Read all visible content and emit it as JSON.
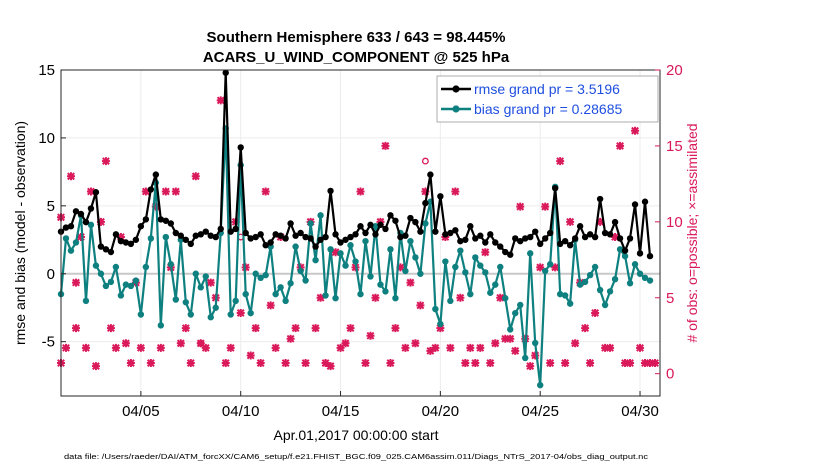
{
  "colors": {
    "rmse": "#000000",
    "bias": "#0f8080",
    "obs": "#d9195a",
    "legend_text": "#1f4fe0",
    "zero_line": "#c8c8c8"
  },
  "chart_data": {
    "type": "line",
    "title": "Southern Hemisphere 633 / 643 = 98.445%",
    "subtitle": "ACARS_U_WIND_COMPONENT @ 525 hPa",
    "xlabel": "Apr.01,2017 00:00:00 start",
    "ylabel": "rmse and bias (model - observation)",
    "y2label": "# of obs: o=possible; ×=assimilated",
    "footnote": "data file: /Users/raeder/DAI/ATM_forcXX/CAM6_setup/f.e21.FHIST_BGC.f09_025.CAM6assim.011/Diags_NTrS_2017-04/obs_diag_output.nc",
    "xlim": [
      1,
      31
    ],
    "ylim": [
      -9,
      15
    ],
    "y2lim": [
      -1.47,
      20
    ],
    "xticks": [
      {
        "v": 5,
        "label": "04/05"
      },
      {
        "v": 10,
        "label": "04/10"
      },
      {
        "v": 15,
        "label": "04/15"
      },
      {
        "v": 20,
        "label": "04/20"
      },
      {
        "v": 25,
        "label": "04/25"
      },
      {
        "v": 30,
        "label": "04/30"
      }
    ],
    "yticks": [
      {
        "v": 15,
        "label": "15"
      },
      {
        "v": 10,
        "label": "10"
      },
      {
        "v": 5,
        "label": "5"
      },
      {
        "v": 0,
        "label": "0"
      },
      {
        "v": -5,
        "label": "-5"
      }
    ],
    "y2ticks": [
      {
        "v": 20,
        "label": "20"
      },
      {
        "v": 15,
        "label": "15"
      },
      {
        "v": 10,
        "label": "10"
      },
      {
        "v": 5,
        "label": "5"
      },
      {
        "v": 0,
        "label": "0"
      }
    ],
    "legend": [
      {
        "name": "rmse grand pr = 3.5196",
        "key": "rmse"
      },
      {
        "name": "bias grand pr = 0.28685",
        "key": "bias"
      }
    ],
    "rmse": [
      [
        1.0,
        3.1
      ],
      [
        1.25,
        3.4
      ],
      [
        1.5,
        3.5
      ],
      [
        1.75,
        4.6
      ],
      [
        2.0,
        4.4
      ],
      [
        2.25,
        3.8
      ],
      [
        2.5,
        4.8
      ],
      [
        2.75,
        6.0
      ],
      [
        3.0,
        2.0
      ],
      [
        3.25,
        1.8
      ],
      [
        3.5,
        1.6
      ],
      [
        3.75,
        2.9
      ],
      [
        4.0,
        2.4
      ],
      [
        4.25,
        2.3
      ],
      [
        4.5,
        2.2
      ],
      [
        4.75,
        2.5
      ],
      [
        5.0,
        3.5
      ],
      [
        5.25,
        4.0
      ],
      [
        5.5,
        6.2
      ],
      [
        5.75,
        7.3
      ],
      [
        6.0,
        4.0
      ],
      [
        6.25,
        3.9
      ],
      [
        6.5,
        3.7
      ],
      [
        6.75,
        3.0
      ],
      [
        7.0,
        2.8
      ],
      [
        7.25,
        2.5
      ],
      [
        7.5,
        2.2
      ],
      [
        7.75,
        2.8
      ],
      [
        8.0,
        2.9
      ],
      [
        8.25,
        3.1
      ],
      [
        8.5,
        2.8
      ],
      [
        8.75,
        2.7
      ],
      [
        9.0,
        3.3
      ],
      [
        9.25,
        14.8
      ],
      [
        9.5,
        3.1
      ],
      [
        9.75,
        3.3
      ],
      [
        10.0,
        9.3
      ],
      [
        10.25,
        3.0
      ],
      [
        10.5,
        2.6
      ],
      [
        10.75,
        2.7
      ],
      [
        11.0,
        2.9
      ],
      [
        11.25,
        2.1
      ],
      [
        11.5,
        2.3
      ],
      [
        11.75,
        2.9
      ],
      [
        12.0,
        2.8
      ],
      [
        12.25,
        2.6
      ],
      [
        12.5,
        3.7
      ],
      [
        12.75,
        2.8
      ],
      [
        13.0,
        3.0
      ],
      [
        13.25,
        2.7
      ],
      [
        13.5,
        2.6
      ],
      [
        13.75,
        2.0
      ],
      [
        14.0,
        2.5
      ],
      [
        14.25,
        2.7
      ],
      [
        14.5,
        6.1
      ],
      [
        14.75,
        2.9
      ],
      [
        15.0,
        2.3
      ],
      [
        15.25,
        2.5
      ],
      [
        15.5,
        2.7
      ],
      [
        15.75,
        2.9
      ],
      [
        16.0,
        3.5
      ],
      [
        16.25,
        3.0
      ],
      [
        16.5,
        3.6
      ],
      [
        16.75,
        2.9
      ],
      [
        17.0,
        3.6
      ],
      [
        17.25,
        3.3
      ],
      [
        17.5,
        4.3
      ],
      [
        17.75,
        3.9
      ],
      [
        18.0,
        2.7
      ],
      [
        18.25,
        2.8
      ],
      [
        18.5,
        4.1
      ],
      [
        18.75,
        3.8
      ],
      [
        19.0,
        3.1
      ],
      [
        19.25,
        5.2
      ],
      [
        19.5,
        7.3
      ],
      [
        19.75,
        3.1
      ],
      [
        20.0,
        5.7
      ],
      [
        20.25,
        2.9
      ],
      [
        20.5,
        3.0
      ],
      [
        20.75,
        3.2
      ],
      [
        21.0,
        2.4
      ],
      [
        21.25,
        2.5
      ],
      [
        21.5,
        3.5
      ],
      [
        21.75,
        2.6
      ],
      [
        22.0,
        2.8
      ],
      [
        22.25,
        2.3
      ],
      [
        22.5,
        2.9
      ],
      [
        22.75,
        2.3
      ],
      [
        23.0,
        2.0
      ],
      [
        23.25,
        1.6
      ],
      [
        23.5,
        1.4
      ],
      [
        23.75,
        2.6
      ],
      [
        24.0,
        2.4
      ],
      [
        24.25,
        2.6
      ],
      [
        24.5,
        2.7
      ],
      [
        24.75,
        3.1
      ],
      [
        25.0,
        2.2
      ],
      [
        25.25,
        2.6
      ],
      [
        25.5,
        3.0
      ],
      [
        25.75,
        6.3
      ],
      [
        26.0,
        2.2
      ],
      [
        26.25,
        2.4
      ],
      [
        26.5,
        2.1
      ],
      [
        26.75,
        2.6
      ],
      [
        27.0,
        3.5
      ],
      [
        27.25,
        2.7
      ],
      [
        27.5,
        2.9
      ],
      [
        27.75,
        2.7
      ],
      [
        28.0,
        5.5
      ],
      [
        28.25,
        3.0
      ],
      [
        28.5,
        2.9
      ],
      [
        28.75,
        3.8
      ],
      [
        29.0,
        2.6
      ],
      [
        29.25,
        1.7
      ],
      [
        29.5,
        2.6
      ],
      [
        29.75,
        5.1
      ],
      [
        30.0,
        1.5
      ],
      [
        30.25,
        5.3
      ],
      [
        30.5,
        1.3
      ]
    ],
    "bias": [
      [
        1.0,
        -1.5
      ],
      [
        1.25,
        2.6
      ],
      [
        1.5,
        1.7
      ],
      [
        1.75,
        2.3
      ],
      [
        2.0,
        4.3
      ],
      [
        2.25,
        -2.0
      ],
      [
        2.5,
        3.6
      ],
      [
        2.75,
        0.6
      ],
      [
        3.0,
        0.0
      ],
      [
        3.25,
        -0.9
      ],
      [
        3.5,
        -0.6
      ],
      [
        3.75,
        0.5
      ],
      [
        4.0,
        -1.6
      ],
      [
        4.25,
        -0.8
      ],
      [
        4.5,
        -0.9
      ],
      [
        4.75,
        -0.5
      ],
      [
        5.0,
        -3.0
      ],
      [
        5.25,
        0.5
      ],
      [
        5.5,
        2.6
      ],
      [
        5.75,
        6.7
      ],
      [
        6.0,
        -3.8
      ],
      [
        6.25,
        2.7
      ],
      [
        6.5,
        0.7
      ],
      [
        6.75,
        -1.9
      ],
      [
        7.0,
        2.5
      ],
      [
        7.25,
        -2.1
      ],
      [
        7.5,
        -3.0
      ],
      [
        7.75,
        0.0
      ],
      [
        8.0,
        -1.0
      ],
      [
        8.25,
        -0.2
      ],
      [
        8.5,
        -3.2
      ],
      [
        8.75,
        -2.5
      ],
      [
        9.0,
        3.0
      ],
      [
        9.25,
        10.7
      ],
      [
        9.5,
        -3.0
      ],
      [
        9.75,
        -2.0
      ],
      [
        10.0,
        8.0
      ],
      [
        10.25,
        -1.5
      ],
      [
        10.5,
        -2.9
      ],
      [
        10.75,
        0.0
      ],
      [
        11.0,
        -0.3
      ],
      [
        11.25,
        -0.1
      ],
      [
        11.5,
        2.0
      ],
      [
        11.75,
        -1.5
      ],
      [
        12.0,
        -1.0
      ],
      [
        12.25,
        -2.0
      ],
      [
        12.5,
        -0.7
      ],
      [
        12.75,
        2.0
      ],
      [
        13.0,
        0.2
      ],
      [
        13.25,
        -0.5
      ],
      [
        13.5,
        3.7
      ],
      [
        13.75,
        1.0
      ],
      [
        14.0,
        4.3
      ],
      [
        14.25,
        -1.6
      ],
      [
        14.5,
        1.8
      ],
      [
        14.75,
        -1.8
      ],
      [
        15.0,
        1.5
      ],
      [
        15.25,
        0.6
      ],
      [
        15.5,
        2.1
      ],
      [
        15.75,
        0.9
      ],
      [
        16.0,
        -1.5
      ],
      [
        16.25,
        2.4
      ],
      [
        16.5,
        -0.2
      ],
      [
        16.75,
        3.5
      ],
      [
        17.0,
        -0.8
      ],
      [
        17.25,
        -1.3
      ],
      [
        17.5,
        1.8
      ],
      [
        17.75,
        -1.8
      ],
      [
        18.0,
        3.0
      ],
      [
        18.25,
        0.2
      ],
      [
        18.5,
        2.4
      ],
      [
        18.75,
        1.2
      ],
      [
        19.0,
        0.0
      ],
      [
        19.25,
        3.7
      ],
      [
        19.5,
        5.3
      ],
      [
        19.75,
        -2.6
      ],
      [
        20.0,
        -3.7
      ],
      [
        20.25,
        0.9
      ],
      [
        20.5,
        -2.0
      ],
      [
        20.75,
        0.5
      ],
      [
        21.0,
        1.7
      ],
      [
        21.25,
        0.1
      ],
      [
        21.5,
        -1.5
      ],
      [
        21.75,
        1.2
      ],
      [
        22.0,
        0.6
      ],
      [
        22.25,
        0.1
      ],
      [
        22.5,
        -1.4
      ],
      [
        22.75,
        -0.8
      ],
      [
        23.0,
        0.5
      ],
      [
        23.25,
        -1.8
      ],
      [
        23.5,
        -4.1
      ],
      [
        23.75,
        -2.9
      ],
      [
        24.0,
        -2.3
      ],
      [
        24.25,
        -6.2
      ],
      [
        24.5,
        1.5
      ],
      [
        24.75,
        -5.1
      ],
      [
        25.0,
        -8.2
      ],
      [
        25.25,
        0.2
      ],
      [
        25.5,
        0.7
      ],
      [
        25.75,
        6.4
      ],
      [
        26.0,
        -1.5
      ],
      [
        26.25,
        -1.6
      ],
      [
        26.5,
        -2.2
      ],
      [
        26.75,
        2.5
      ],
      [
        27.0,
        -0.8
      ],
      [
        27.25,
        -0.6
      ],
      [
        27.5,
        -0.1
      ],
      [
        27.75,
        0.5
      ],
      [
        28.0,
        -1.2
      ],
      [
        28.25,
        -2.3
      ],
      [
        28.5,
        -1.3
      ],
      [
        28.75,
        -0.4
      ],
      [
        29.0,
        1.8
      ],
      [
        29.25,
        1.3
      ],
      [
        29.5,
        -0.7
      ],
      [
        29.75,
        0.7
      ],
      [
        30.0,
        0.0
      ],
      [
        30.25,
        -0.3
      ],
      [
        30.5,
        -0.5
      ]
    ],
    "obs_assimilated": [
      [
        1.0,
        10.3
      ],
      [
        1.0,
        0.7
      ],
      [
        1.25,
        1.7
      ],
      [
        1.5,
        13.0
      ],
      [
        1.75,
        6.0
      ],
      [
        1.75,
        3.0
      ],
      [
        2.0,
        9.0
      ],
      [
        2.25,
        1.7
      ],
      [
        2.5,
        12.0
      ],
      [
        2.75,
        0.5
      ],
      [
        3.0,
        10.0
      ],
      [
        3.25,
        14.0
      ],
      [
        3.5,
        3.0
      ],
      [
        3.75,
        1.7
      ],
      [
        4.0,
        9.0
      ],
      [
        4.25,
        2.0
      ],
      [
        4.5,
        0.7
      ],
      [
        4.75,
        6.0
      ],
      [
        5.0,
        1.7
      ],
      [
        5.25,
        12.0
      ],
      [
        5.5,
        0.7
      ],
      [
        5.75,
        11.0
      ],
      [
        6.0,
        1.7
      ],
      [
        6.25,
        12.0
      ],
      [
        6.5,
        7.0
      ],
      [
        6.75,
        12.0
      ],
      [
        7.0,
        2.0
      ],
      [
        7.25,
        3.0
      ],
      [
        7.5,
        0.7
      ],
      [
        7.75,
        13.0
      ],
      [
        8.0,
        2.0
      ],
      [
        8.25,
        1.7
      ],
      [
        8.5,
        6.0
      ],
      [
        8.75,
        5.0
      ],
      [
        9.0,
        18.0
      ],
      [
        9.25,
        0.7
      ],
      [
        9.5,
        1.7
      ],
      [
        9.75,
        10.0
      ],
      [
        10.0,
        4.0
      ],
      [
        10.25,
        7.0
      ],
      [
        10.5,
        1.2
      ],
      [
        10.75,
        3.0
      ],
      [
        11.0,
        0.7
      ],
      [
        11.25,
        12.0
      ],
      [
        11.5,
        4.5
      ],
      [
        11.75,
        1.7
      ],
      [
        12.0,
        9.0
      ],
      [
        12.25,
        0.7
      ],
      [
        12.5,
        2.3
      ],
      [
        12.75,
        3.0
      ],
      [
        13.0,
        7.0
      ],
      [
        13.25,
        0.7
      ],
      [
        13.5,
        10.0
      ],
      [
        13.75,
        3.0
      ],
      [
        14.0,
        5.0
      ],
      [
        14.25,
        0.7
      ],
      [
        14.5,
        0.5
      ],
      [
        14.75,
        8.0
      ],
      [
        15.0,
        1.7
      ],
      [
        15.25,
        2.0
      ],
      [
        15.5,
        3.0
      ],
      [
        15.75,
        7.0
      ],
      [
        16.0,
        12.0
      ],
      [
        16.25,
        0.7
      ],
      [
        16.5,
        2.5
      ],
      [
        16.75,
        5.0
      ],
      [
        17.0,
        10.0
      ],
      [
        17.25,
        15.0
      ],
      [
        17.5,
        0.7
      ],
      [
        17.75,
        3.0
      ],
      [
        18.0,
        7.0
      ],
      [
        18.25,
        1.7
      ],
      [
        18.5,
        6.0
      ],
      [
        18.75,
        2.0
      ],
      [
        19.0,
        4.5
      ],
      [
        19.25,
        12.0
      ],
      [
        19.5,
        1.5
      ],
      [
        19.75,
        1.7
      ],
      [
        20.0,
        3.0
      ],
      [
        20.25,
        9.0
      ],
      [
        20.5,
        1.7
      ],
      [
        20.75,
        12.0
      ],
      [
        21.0,
        5.0
      ],
      [
        21.25,
        0.7
      ],
      [
        21.5,
        1.7
      ],
      [
        21.75,
        0.7
      ],
      [
        22.0,
        1.7
      ],
      [
        22.25,
        8.0
      ],
      [
        22.5,
        0.7
      ],
      [
        22.75,
        2.0
      ],
      [
        23.0,
        5.0
      ],
      [
        23.25,
        2.3
      ],
      [
        23.5,
        2.3
      ],
      [
        23.75,
        1.5
      ],
      [
        24.0,
        11.0
      ],
      [
        24.25,
        2.3
      ],
      [
        24.5,
        0.5
      ],
      [
        24.75,
        1.2
      ],
      [
        25.0,
        7.0
      ],
      [
        25.25,
        11.0
      ],
      [
        25.5,
        0.7
      ],
      [
        25.75,
        7.0
      ],
      [
        26.0,
        14.0
      ],
      [
        26.25,
        0.7
      ],
      [
        26.5,
        10.0
      ],
      [
        26.75,
        2.0
      ],
      [
        27.0,
        6.0
      ],
      [
        27.25,
        3.0
      ],
      [
        27.5,
        0.7
      ],
      [
        27.75,
        4.0
      ],
      [
        28.0,
        10.0
      ],
      [
        28.25,
        1.7
      ],
      [
        28.5,
        1.7
      ],
      [
        28.75,
        9.0
      ],
      [
        29.0,
        15.0
      ],
      [
        29.25,
        0.7
      ],
      [
        29.5,
        0.7
      ],
      [
        29.75,
        16.0
      ],
      [
        30.0,
        1.7
      ],
      [
        30.25,
        0.7
      ],
      [
        30.5,
        0.7
      ],
      [
        30.75,
        0.7
      ]
    ],
    "obs_possible": [
      [
        10.0,
        9.0
      ],
      [
        19.25,
        14.0
      ],
      [
        8.0,
        2.0
      ]
    ]
  }
}
